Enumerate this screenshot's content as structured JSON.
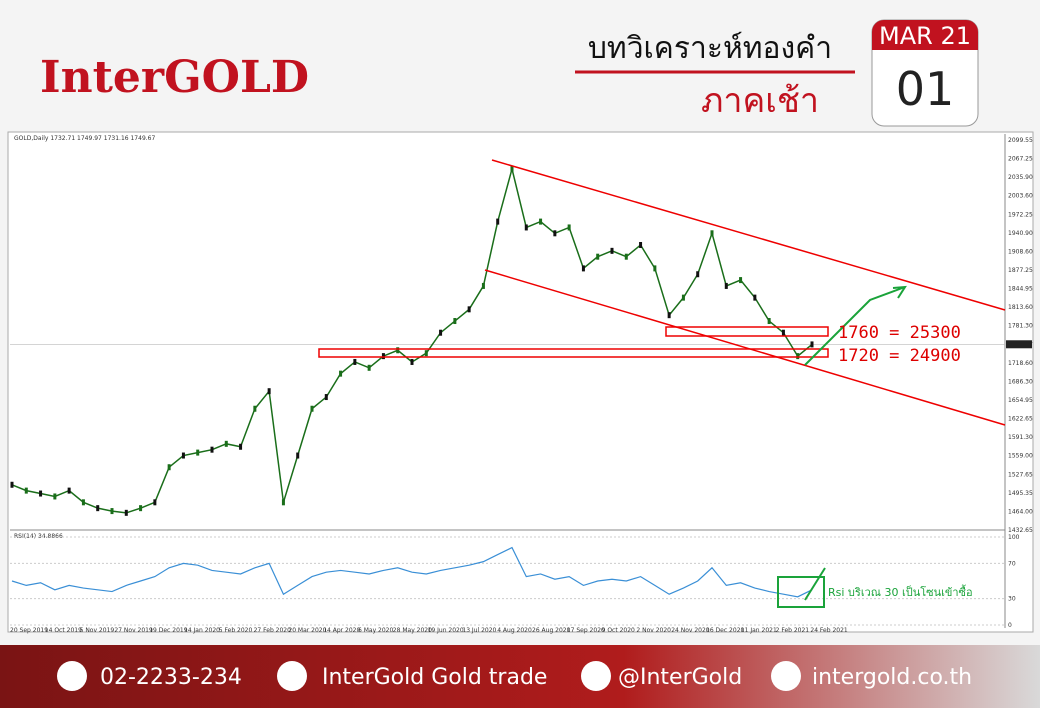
{
  "header": {
    "brand": "InterGOLD",
    "title": "บทวิเคราะห์ทองคำ",
    "subtitle": "ภาคเช้า",
    "month": "MAR 21",
    "day": "01"
  },
  "chart": {
    "label": "GOLD,Daily 1732.71 1749.97 1731.16 1749.67",
    "current_price": "1749.67",
    "yticks": [
      "2099.55",
      "2067.25",
      "2035.90",
      "2003.60",
      "1972.25",
      "1940.90",
      "1908.60",
      "1877.25",
      "1844.95",
      "1813.60",
      "1781.30",
      "1749.67",
      "1718.60",
      "1686.30",
      "1654.95",
      "1622.65",
      "1591.30",
      "1559.00",
      "1527.65",
      "1495.35",
      "1464.00",
      "1432.65"
    ],
    "xlabels": [
      "20 Sep 2019",
      "14 Oct 2019",
      "5 Nov 2019",
      "27 Nov 2019",
      "19 Dec 2019",
      "14 Jan 2020",
      "5 Feb 2020",
      "27 Feb 2020",
      "20 Mar 2020",
      "14 Apr 2020",
      "6 May 2020",
      "28 May 2020",
      "19 Jun 2020",
      "13 Jul 2020",
      "4 Aug 2020",
      "26 Aug 2020",
      "17 Sep 2020",
      "9 Oct 2020",
      "2 Nov 2020",
      "24 Nov 2020",
      "16 Dec 2020",
      "11 Jan 2021",
      "2 Feb 2021",
      "24 Feb 2021"
    ],
    "price": [
      1510,
      1500,
      1495,
      1490,
      1500,
      1480,
      1470,
      1465,
      1462,
      1470,
      1480,
      1540,
      1560,
      1565,
      1570,
      1580,
      1575,
      1640,
      1670,
      1480,
      1560,
      1640,
      1660,
      1700,
      1720,
      1710,
      1730,
      1740,
      1720,
      1735,
      1770,
      1790,
      1810,
      1850,
      1960,
      2050,
      1950,
      1960,
      1940,
      1950,
      1880,
      1900,
      1910,
      1900,
      1920,
      1880,
      1800,
      1830,
      1870,
      1940,
      1850,
      1860,
      1830,
      1790,
      1770,
      1730,
      1750
    ],
    "rsi_label": "RSI(14) 34.8866",
    "rsi_ticks": [
      "100",
      "70",
      "30",
      "0"
    ],
    "rsi": [
      50,
      45,
      48,
      40,
      45,
      42,
      40,
      38,
      45,
      50,
      55,
      65,
      70,
      68,
      62,
      60,
      58,
      65,
      70,
      35,
      45,
      55,
      60,
      62,
      60,
      58,
      62,
      65,
      60,
      58,
      62,
      65,
      68,
      72,
      80,
      88,
      55,
      58,
      52,
      55,
      45,
      50,
      52,
      50,
      55,
      45,
      35,
      42,
      50,
      65,
      45,
      48,
      42,
      38,
      35,
      32,
      40
    ],
    "annotations": [
      "1760  =  25300",
      "1720  =  24900",
      "Rsi บริเวณ 30 เป็นโซนเข้าซื้อ"
    ]
  },
  "footer": {
    "phone": "02-2233-234",
    "facebook": "InterGold Gold trade",
    "line": "@InterGold",
    "website": "intergold.co.th"
  }
}
